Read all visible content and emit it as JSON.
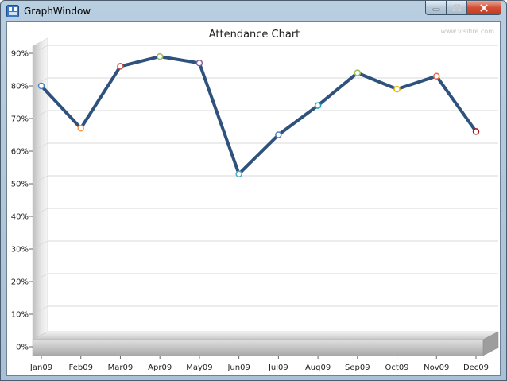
{
  "window": {
    "title": "GraphWindow",
    "icon": "app-window-icon",
    "controls": [
      "minimize-icon",
      "maximize-icon",
      "close-icon"
    ]
  },
  "watermark": "www.visifire.com",
  "chart_data": {
    "type": "line",
    "title": "Attendance Chart",
    "xlabel": "",
    "ylabel": "",
    "categories": [
      "Jan09",
      "Feb09",
      "Mar09",
      "Apr09",
      "May09",
      "Jun09",
      "Jul09",
      "Aug09",
      "Sep09",
      "Oct09",
      "Nov09",
      "Dec09"
    ],
    "series": [
      {
        "values": [
          80,
          67,
          86,
          89,
          87,
          53,
          65,
          74,
          84,
          79,
          83,
          66
        ],
        "color": "#2f527c",
        "marker_colors": [
          "#4f81bd",
          "#f79646",
          "#c0504d",
          "#9bbb59",
          "#8064a2",
          "#4bacc6",
          "#4f81bd",
          "#17a0b0",
          "#9bbb59",
          "#e6b800",
          "#e86a4a",
          "#a0191e"
        ]
      }
    ],
    "ylim": [
      0,
      90
    ],
    "y_ticks": [
      0,
      10,
      20,
      30,
      40,
      50,
      60,
      70,
      80,
      90
    ],
    "y_tick_labels": [
      "0%",
      "10%",
      "20%",
      "30%",
      "40%",
      "50%",
      "60%",
      "70%",
      "80%",
      "90%"
    ],
    "grid": true,
    "legend": "none",
    "style": "3d-plot-area"
  }
}
